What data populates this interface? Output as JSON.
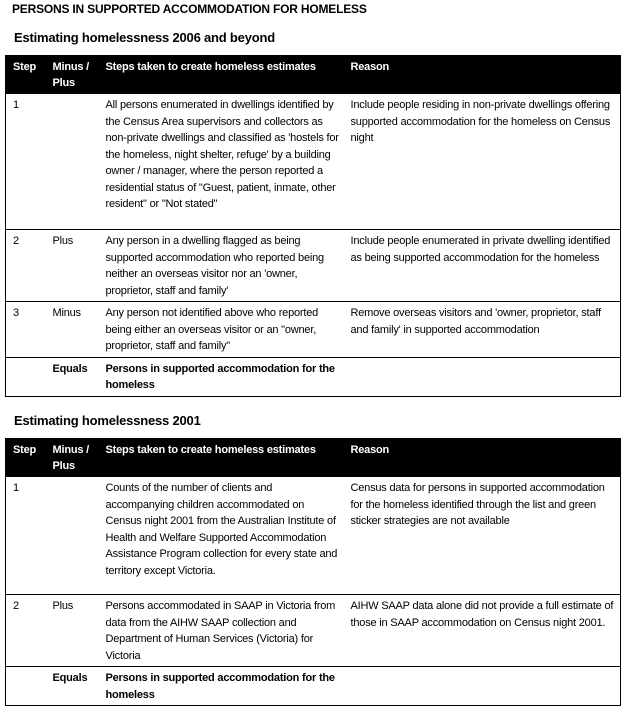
{
  "title": "PERSONS IN SUPPORTED ACCOMMODATION FOR HOMELESS",
  "sections": [
    {
      "heading": "Estimating homelessness 2006 and beyond",
      "columns": [
        "Step",
        "Minus / Plus",
        "Steps taken to create homeless estimates",
        "Reason"
      ],
      "rows": [
        {
          "step": "1",
          "op": "",
          "steps": "All persons enumerated in dwellings identified by the Census Area supervisors and collectors as non-private dwellings and classified as 'hostels for the homeless, night shelter, refuge' by a building owner / manager, where the person reported a residential status of \"Guest, patient, inmate, other resident\" or \"Not stated\"",
          "reason": "Include people residing in non-private dwellings offering supported accommodation for the homeless on Census night"
        },
        {
          "step": "2",
          "op": "Plus",
          "steps": "Any person in a dwelling flagged as being supported accommodation who reported being neither an overseas visitor nor an 'owner, proprietor, staff and family'",
          "reason": "Include people enumerated in private dwelling identified as being supported accommodation for the homeless"
        },
        {
          "step": "3",
          "op": "Minus",
          "steps": "Any person not identified above who reported being either an overseas visitor or an \"owner, proprietor, staff and family\"",
          "reason": "Remove overseas visitors and 'owner, proprietor, staff and family' in supported accommodation"
        },
        {
          "step": "",
          "op": "Equals",
          "steps": "Persons in supported accommodation for the homeless",
          "reason": ""
        }
      ]
    },
    {
      "heading": "Estimating homelessness 2001",
      "columns": [
        "Step",
        "Minus / Plus",
        "Steps taken to create homeless estimates",
        "Reason"
      ],
      "rows": [
        {
          "step": "1",
          "op": "",
          "steps": "Counts of the number of clients and accompanying children accommodated on Census night 2001 from the Australian Institute of Health and Welfare Supported Accommodation Assistance Program collection for every state and territory except Victoria.",
          "reason": "Census data for persons in supported accommodation for the homeless identified through the list and green sticker strategies are not available"
        },
        {
          "step": "2",
          "op": "Plus",
          "steps": "Persons accommodated in SAAP in Victoria from data from the AIHW SAAP collection and Department of Human Services (Victoria) for Victoria",
          "reason": "AIHW SAAP data alone did not provide a full estimate of those in SAAP accommodation on Census night 2001."
        },
        {
          "step": "",
          "op": "Equals",
          "steps": "Persons in supported accommodation for the homeless",
          "reason": ""
        }
      ]
    }
  ]
}
